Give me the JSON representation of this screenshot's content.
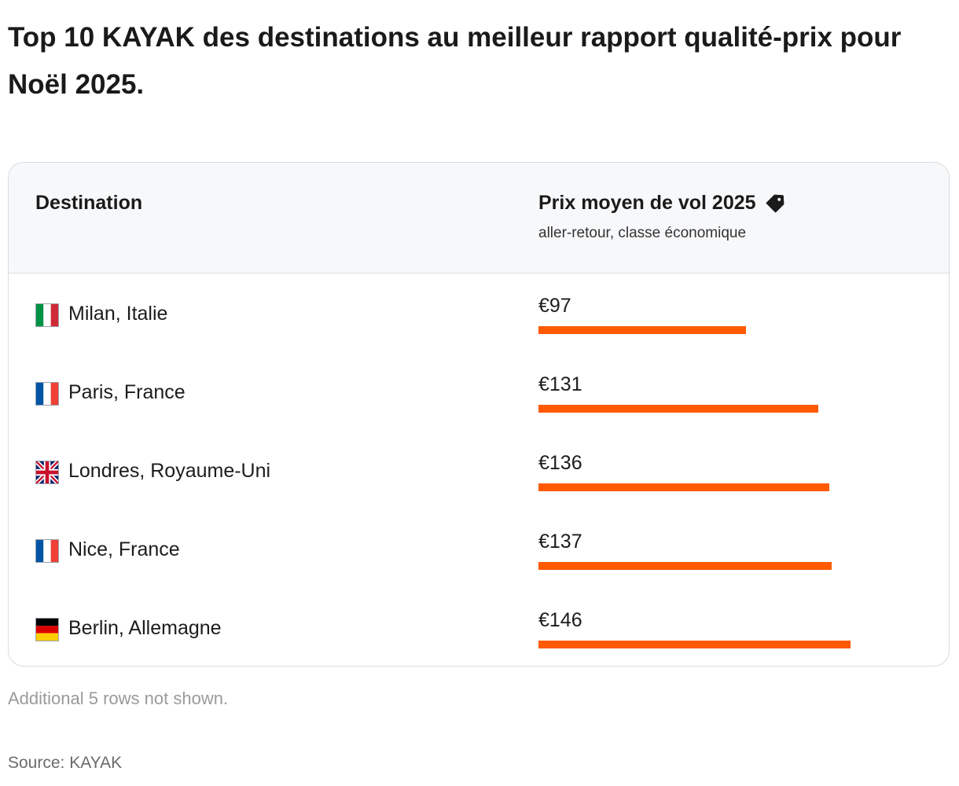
{
  "title": "Top 10 KAYAK des destinations au meilleur rapport qualité-prix pour Noël 2025.",
  "table": {
    "col_destination": "Destination",
    "col_price": "Prix moyen de vol 2025",
    "col_price_sub": "aller-retour, classe économique",
    "price_icon": "price-tag-icon",
    "bar_color": "#ff5a00",
    "rows": [
      {
        "flag": "italy-flag-icon",
        "city": "Milan, Italie",
        "price_label": "€97",
        "value": 97
      },
      {
        "flag": "france-flag-icon",
        "city": "Paris, France",
        "price_label": "€131",
        "value": 131
      },
      {
        "flag": "uk-flag-icon",
        "city": "Londres, Royaume-Uni",
        "price_label": "€136",
        "value": 136
      },
      {
        "flag": "france-flag-icon",
        "city": "Nice, France",
        "price_label": "€137",
        "value": 137
      },
      {
        "flag": "germany-flag-icon",
        "city": "Berlin, Allemagne",
        "price_label": "€146",
        "value": 146
      }
    ]
  },
  "note": "Additional 5 rows not shown.",
  "source": "Source: KAYAK"
}
